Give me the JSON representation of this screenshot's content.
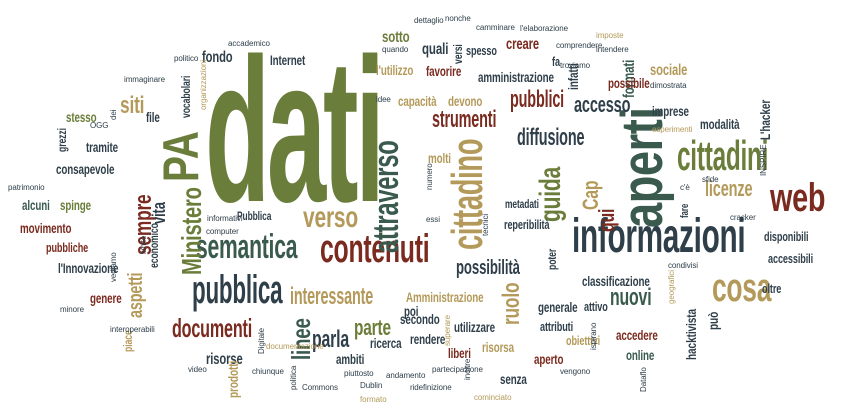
{
  "colors": [
    "#6b7d3a",
    "#2f3f4a",
    "#7a2a1e",
    "#b49a5a",
    "#3a5a4e"
  ],
  "words": [
    {
      "t": "dati",
      "c": 0
    },
    {
      "t": "aperti",
      "c": 4
    },
    {
      "t": "informazioni",
      "c": 1
    },
    {
      "t": "PA",
      "c": 0
    },
    {
      "t": "cittadini",
      "c": 0
    },
    {
      "t": "contenuti",
      "c": 2
    },
    {
      "t": "cittadino",
      "c": 3
    },
    {
      "t": "attraverso",
      "c": 4
    },
    {
      "t": "web",
      "c": 2
    },
    {
      "t": "pubblica",
      "c": 1
    },
    {
      "t": "semantica",
      "c": 4
    },
    {
      "t": "Ministero",
      "c": 0
    },
    {
      "t": "verso",
      "c": 3
    },
    {
      "t": "guida",
      "c": 0
    },
    {
      "t": "cosa",
      "c": 3
    },
    {
      "t": "sempre",
      "c": 2
    },
    {
      "t": "linee",
      "c": 4
    },
    {
      "t": "documenti",
      "c": 2
    },
    {
      "t": "interessante",
      "c": 3
    },
    {
      "t": "strumenti",
      "c": 2
    },
    {
      "t": "parla",
      "c": 1
    },
    {
      "t": "pubblici",
      "c": 2
    },
    {
      "t": "accesso",
      "c": 1
    },
    {
      "t": "diffusione",
      "c": 1
    },
    {
      "t": "possibilità",
      "c": 1
    },
    {
      "t": "licenze",
      "c": 3
    },
    {
      "t": "parte",
      "c": 0
    },
    {
      "t": "ruolo",
      "c": 3
    },
    {
      "t": "nuovi",
      "c": 4
    },
    {
      "t": "siti",
      "c": 3
    },
    {
      "t": "aspetti",
      "c": 3
    },
    {
      "t": "Cap",
      "c": 3
    },
    {
      "t": "qui",
      "c": 2
    },
    {
      "t": "vita",
      "c": 1
    },
    {
      "t": "formati",
      "c": 4
    },
    {
      "t": "sociale",
      "c": 3
    },
    {
      "t": "sotto",
      "c": 0
    },
    {
      "t": "quali",
      "c": 1
    },
    {
      "t": "creare",
      "c": 2
    },
    {
      "t": "fondo",
      "c": 1
    },
    {
      "t": "Internet",
      "c": 1
    },
    {
      "t": "l'utilizzo",
      "c": 3
    },
    {
      "t": "favorire",
      "c": 2
    },
    {
      "t": "amministrazione",
      "c": 1
    },
    {
      "t": "capacità",
      "c": 3
    },
    {
      "t": "devono",
      "c": 3
    },
    {
      "t": "possibile",
      "c": 2
    },
    {
      "t": "imprese",
      "c": 1
    },
    {
      "t": "modalità",
      "c": 1
    },
    {
      "t": "L'hacker",
      "c": 1
    },
    {
      "t": "stesso",
      "c": 0
    },
    {
      "t": "file",
      "c": 1
    },
    {
      "t": "tramite",
      "c": 1
    },
    {
      "t": "consapevole",
      "c": 1
    },
    {
      "t": "alcuni",
      "c": 4
    },
    {
      "t": "spinge",
      "c": 0
    },
    {
      "t": "movimento",
      "c": 2
    },
    {
      "t": "pubbliche",
      "c": 2
    },
    {
      "t": "l'Innovazione",
      "c": 1
    },
    {
      "t": "genere",
      "c": 2
    },
    {
      "t": "piace",
      "c": 3
    },
    {
      "t": "economico",
      "c": 1
    },
    {
      "t": "Pubblica",
      "c": 1
    },
    {
      "t": "reperibilità",
      "c": 1
    },
    {
      "t": "poter",
      "c": 1
    },
    {
      "t": "classificazione",
      "c": 1
    },
    {
      "t": "molti",
      "c": 3
    },
    {
      "t": "poi",
      "c": 1
    },
    {
      "t": "Amministrazione",
      "c": 3
    },
    {
      "t": "secondo",
      "c": 1
    },
    {
      "t": "generale",
      "c": 1
    },
    {
      "t": "attivo",
      "c": 1
    },
    {
      "t": "utilizzare",
      "c": 1
    },
    {
      "t": "rendere",
      "c": 1
    },
    {
      "t": "attributi",
      "c": 1
    },
    {
      "t": "obiettivi",
      "c": 3
    },
    {
      "t": "accedere",
      "c": 2
    },
    {
      "t": "online",
      "c": 4
    },
    {
      "t": "hacktivista",
      "c": 1
    },
    {
      "t": "può",
      "c": 1
    },
    {
      "t": "disponibili",
      "c": 1
    },
    {
      "t": "accessibili",
      "c": 1
    },
    {
      "t": "oltre",
      "c": 1
    },
    {
      "t": "risorse",
      "c": 1
    },
    {
      "t": "prodotti",
      "c": 3
    },
    {
      "t": "ambiti",
      "c": 1
    },
    {
      "t": "ricerca",
      "c": 1
    },
    {
      "t": "liberi",
      "c": 2
    },
    {
      "t": "risorsa",
      "c": 3
    },
    {
      "t": "aperto",
      "c": 2
    },
    {
      "t": "senza",
      "c": 1
    },
    {
      "t": "metadati",
      "c": 1
    },
    {
      "t": "grezzi",
      "c": 1
    },
    {
      "t": "vocabolari",
      "c": 1
    },
    {
      "t": "fare",
      "c": 1
    },
    {
      "t": "versi",
      "c": 1
    },
    {
      "t": "spesso",
      "c": 1
    },
    {
      "t": "fa",
      "c": 1
    },
    {
      "t": "infatti",
      "c": 1
    },
    {
      "t": "dettaglio",
      "c": 1
    },
    {
      "t": "nonche",
      "c": 1
    },
    {
      "t": "camminare",
      "c": 1
    },
    {
      "t": "l'elaborazione",
      "c": 1
    },
    {
      "t": "imposte",
      "c": 3
    },
    {
      "t": "accademico",
      "c": 1
    },
    {
      "t": "politico",
      "c": 1
    },
    {
      "t": "quando",
      "c": 1
    },
    {
      "t": "comprendere",
      "c": 1
    },
    {
      "t": "intendere",
      "c": 1
    },
    {
      "t": "troviamo",
      "c": 1
    },
    {
      "t": "dimostrata",
      "c": 1
    },
    {
      "t": "immaginare",
      "c": 1
    },
    {
      "t": "organizzazioni",
      "c": 3
    },
    {
      "t": "idee",
      "c": 1
    },
    {
      "t": "dei",
      "c": 1
    },
    {
      "t": "OGG",
      "c": 1
    },
    {
      "t": "esperimenti",
      "c": 3
    },
    {
      "t": "patrimonio",
      "c": 1
    },
    {
      "t": "informativi",
      "c": 1
    },
    {
      "t": "computer",
      "c": 1
    },
    {
      "t": "limite",
      "c": 1
    },
    {
      "t": "vediamo",
      "c": 1
    },
    {
      "t": "minore",
      "c": 1
    },
    {
      "t": "interoperabili",
      "c": 1
    },
    {
      "t": "Digitale",
      "c": 1
    },
    {
      "t": "chiunque",
      "c": 1
    },
    {
      "t": "documentazione",
      "c": 3
    },
    {
      "t": "video",
      "c": 1
    },
    {
      "t": "politica",
      "c": 1
    },
    {
      "t": "Commons",
      "c": 1
    },
    {
      "t": "Dublin",
      "c": 1
    },
    {
      "t": "piuttosto",
      "c": 1
    },
    {
      "t": "formato",
      "c": 3
    },
    {
      "t": "andamento",
      "c": 1
    },
    {
      "t": "ridefinizione",
      "c": 1
    },
    {
      "t": "partecipazione",
      "c": 1
    },
    {
      "t": "inoltre",
      "c": 1
    },
    {
      "t": "cominciato",
      "c": 3
    },
    {
      "t": "vengono",
      "c": 1
    },
    {
      "t": "condivisi",
      "c": 1
    },
    {
      "t": "INSPIRE",
      "c": 1
    },
    {
      "t": "c'è",
      "c": 1
    },
    {
      "t": "sfide",
      "c": 1
    },
    {
      "t": "cracker",
      "c": 1
    },
    {
      "t": "tecnici",
      "c": 1
    },
    {
      "t": "essi",
      "c": 1
    },
    {
      "t": "numero",
      "c": 1
    },
    {
      "t": "superare",
      "c": 3
    },
    {
      "t": "geografici",
      "c": 3
    },
    {
      "t": "ispirano",
      "c": 1
    },
    {
      "t": "Dataflo",
      "c": 1
    }
  ]
}
